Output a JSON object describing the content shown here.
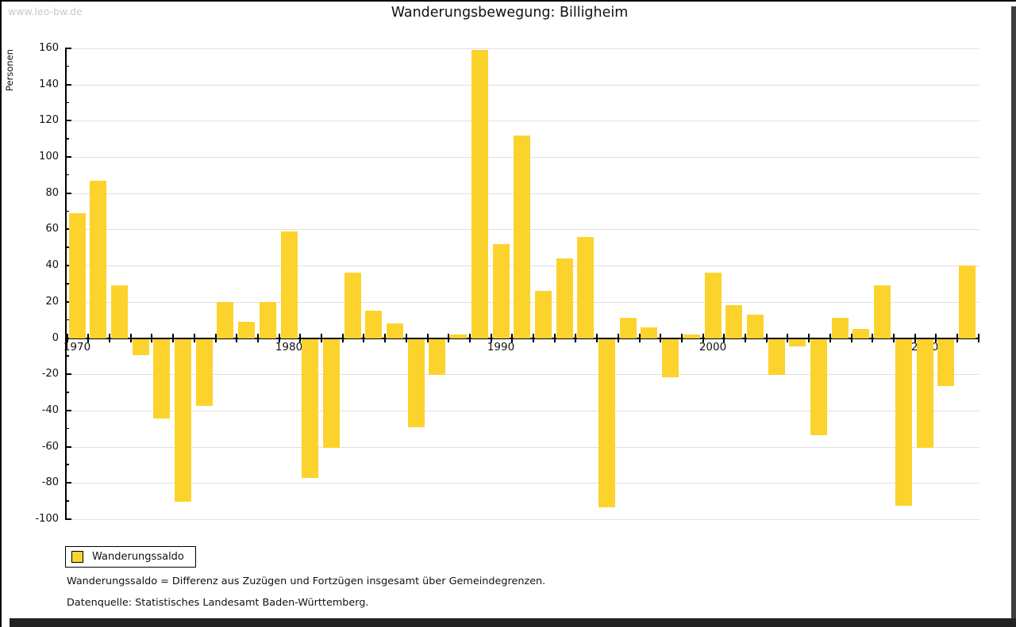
{
  "watermark": "www.leo-bw.de",
  "title": "Wanderungsbewegung: Billigheim",
  "y_axis_label": "Personen",
  "legend": {
    "label": "Wanderungssaldo",
    "swatch_color": "#FCD32D"
  },
  "footnotes": [
    "Wanderungssaldo = Differenz aus Zuzügen und Fortzügen insgesamt über Gemeindegrenzen.",
    "Datenquelle: Statistisches Landesamt Baden-Württemberg."
  ],
  "chart_data": {
    "type": "bar",
    "title": "Wanderungsbewegung: Billigheim",
    "xlabel": "",
    "ylabel": "Personen",
    "ylim": [
      -100,
      160
    ],
    "ytick_step": 20,
    "grid": true,
    "legend_position": "bottom-left",
    "bar_color": "#FCD32D",
    "xtick_labeled_years": [
      1970,
      1980,
      1990,
      2000,
      2010
    ],
    "series_name": "Wanderungssaldo",
    "categories": [
      1970,
      1971,
      1972,
      1973,
      1974,
      1975,
      1976,
      1977,
      1978,
      1979,
      1980,
      1981,
      1982,
      1983,
      1984,
      1985,
      1986,
      1987,
      1988,
      1989,
      1990,
      1991,
      1992,
      1993,
      1994,
      1995,
      1996,
      1997,
      1998,
      1999,
      2000,
      2001,
      2002,
      2003,
      2004,
      2005,
      2006,
      2007,
      2008,
      2009,
      2010,
      2011,
      2012
    ],
    "values": [
      69,
      87,
      29,
      -9,
      -44,
      -90,
      -37,
      20,
      9,
      20,
      59,
      -77,
      -60,
      36,
      15,
      8,
      -49,
      -20,
      2,
      159,
      52,
      112,
      26,
      44,
      56,
      -93,
      11,
      6,
      -21,
      2,
      36,
      18,
      13,
      -20,
      -4,
      -53,
      11,
      5,
      29,
      -92,
      -60,
      -26,
      40
    ]
  }
}
